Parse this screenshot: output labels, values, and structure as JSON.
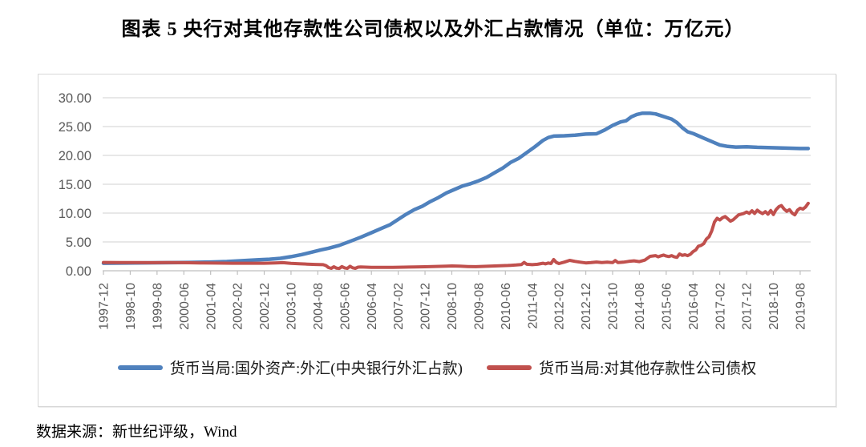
{
  "page": {
    "title": "图表 5  央行对其他存款性公司债权以及外汇占款情况（单位：万亿元）",
    "source_note": "数据来源：新世纪评级，Wind"
  },
  "chart_data": {
    "type": "line",
    "title": "央行对其他存款性公司债权以及外汇占款情况",
    "unit": "万亿元",
    "grid": true,
    "legend_position": "bottom",
    "colors": {
      "series_fx": "#4F81BD",
      "series_claims": "#C0504D",
      "gridline": "#D9D9D9",
      "axis": "#BFBFBF",
      "tick_label": "#595959"
    },
    "y_axis": {
      "min": 0,
      "max": 30,
      "step": 5,
      "tick_labels": [
        "0.00",
        "5.00",
        "10.00",
        "15.00",
        "20.00",
        "25.00",
        "30.00"
      ]
    },
    "x_axis": {
      "start": "1997-12",
      "end": "2019-11",
      "tick_interval_months": 10,
      "tick_labels": [
        "1997-12",
        "1998-10",
        "1999-08",
        "2000-06",
        "2001-04",
        "2002-02",
        "2002-12",
        "2003-10",
        "2004-08",
        "2005-06",
        "2006-04",
        "2007-02",
        "2007-12",
        "2008-10",
        "2009-08",
        "2010-06",
        "2011-04",
        "2012-02",
        "2012-12",
        "2013-10",
        "2014-08",
        "2015-06",
        "2016-04",
        "2017-02",
        "2017-12",
        "2018-10",
        "2019-08"
      ]
    },
    "legend": [
      {
        "name": "货币当局:国外资产:外汇(中央银行外汇占款)",
        "color": "#4F81BD"
      },
      {
        "name": "货币当局:对其他存款性公司债权",
        "color": "#C0504D"
      }
    ],
    "series": [
      {
        "name": "货币当局:国外资产:外汇(中央银行外汇占款)",
        "color": "#4F81BD",
        "width": 4.5,
        "x_unit": "months since 1997-12",
        "points": [
          [
            0,
            1.3
          ],
          [
            8,
            1.33
          ],
          [
            16,
            1.37
          ],
          [
            24,
            1.4
          ],
          [
            32,
            1.45
          ],
          [
            40,
            1.52
          ],
          [
            46,
            1.6
          ],
          [
            52,
            1.75
          ],
          [
            58,
            1.9
          ],
          [
            62,
            2.0
          ],
          [
            66,
            2.15
          ],
          [
            70,
            2.45
          ],
          [
            74,
            2.8
          ],
          [
            78,
            3.25
          ],
          [
            81,
            3.6
          ],
          [
            84,
            3.9
          ],
          [
            88,
            4.4
          ],
          [
            92,
            5.1
          ],
          [
            96,
            5.8
          ],
          [
            100,
            6.6
          ],
          [
            104,
            7.4
          ],
          [
            107,
            8.0
          ],
          [
            110,
            8.9
          ],
          [
            113,
            9.8
          ],
          [
            116,
            10.6
          ],
          [
            119,
            11.2
          ],
          [
            122,
            12.0
          ],
          [
            125,
            12.7
          ],
          [
            128,
            13.5
          ],
          [
            131,
            14.1
          ],
          [
            134,
            14.7
          ],
          [
            137,
            15.1
          ],
          [
            140,
            15.6
          ],
          [
            143,
            16.2
          ],
          [
            146,
            17.0
          ],
          [
            149,
            17.8
          ],
          [
            152,
            18.8
          ],
          [
            155,
            19.5
          ],
          [
            158,
            20.5
          ],
          [
            161,
            21.5
          ],
          [
            164,
            22.6
          ],
          [
            166,
            23.1
          ],
          [
            168,
            23.35
          ],
          [
            172,
            23.4
          ],
          [
            176,
            23.5
          ],
          [
            180,
            23.7
          ],
          [
            184,
            23.75
          ],
          [
            187,
            24.4
          ],
          [
            190,
            25.2
          ],
          [
            193,
            25.8
          ],
          [
            195,
            26.0
          ],
          [
            197,
            26.7
          ],
          [
            199,
            27.1
          ],
          [
            201,
            27.3
          ],
          [
            204,
            27.3
          ],
          [
            206,
            27.2
          ],
          [
            208,
            26.9
          ],
          [
            210,
            26.6
          ],
          [
            212,
            26.3
          ],
          [
            214,
            25.7
          ],
          [
            216,
            24.8
          ],
          [
            218,
            24.1
          ],
          [
            220,
            23.8
          ],
          [
            222,
            23.4
          ],
          [
            224,
            23.0
          ],
          [
            227,
            22.4
          ],
          [
            230,
            21.8
          ],
          [
            233,
            21.55
          ],
          [
            236,
            21.45
          ],
          [
            240,
            21.5
          ],
          [
            244,
            21.4
          ],
          [
            248,
            21.35
          ],
          [
            252,
            21.3
          ],
          [
            256,
            21.25
          ],
          [
            260,
            21.2
          ],
          [
            263,
            21.2
          ]
        ]
      },
      {
        "name": "货币当局:对其他存款性公司债权",
        "color": "#C0504D",
        "width": 4,
        "x_unit": "months since 1997-12",
        "points": [
          [
            0,
            1.44
          ],
          [
            6,
            1.42
          ],
          [
            12,
            1.43
          ],
          [
            18,
            1.4
          ],
          [
            24,
            1.41
          ],
          [
            30,
            1.4
          ],
          [
            36,
            1.36
          ],
          [
            42,
            1.34
          ],
          [
            48,
            1.31
          ],
          [
            54,
            1.3
          ],
          [
            60,
            1.3
          ],
          [
            64,
            1.36
          ],
          [
            67,
            1.4
          ],
          [
            70,
            1.28
          ],
          [
            73,
            1.22
          ],
          [
            76,
            1.15
          ],
          [
            79,
            1.1
          ],
          [
            82,
            1.05
          ],
          [
            83,
            0.9
          ],
          [
            84,
            0.55
          ],
          [
            85,
            0.42
          ],
          [
            86,
            0.7
          ],
          [
            87,
            0.44
          ],
          [
            88,
            0.4
          ],
          [
            89,
            0.72
          ],
          [
            90,
            0.5
          ],
          [
            91,
            0.4
          ],
          [
            92,
            0.78
          ],
          [
            93,
            0.52
          ],
          [
            94,
            0.42
          ],
          [
            95,
            0.62
          ],
          [
            96,
            0.66
          ],
          [
            98,
            0.62
          ],
          [
            100,
            0.6
          ],
          [
            104,
            0.6
          ],
          [
            108,
            0.58
          ],
          [
            112,
            0.63
          ],
          [
            116,
            0.65
          ],
          [
            120,
            0.7
          ],
          [
            124,
            0.75
          ],
          [
            128,
            0.8
          ],
          [
            130,
            0.83
          ],
          [
            133,
            0.79
          ],
          [
            136,
            0.74
          ],
          [
            139,
            0.71
          ],
          [
            142,
            0.76
          ],
          [
            145,
            0.82
          ],
          [
            148,
            0.88
          ],
          [
            151,
            0.92
          ],
          [
            154,
            1.0
          ],
          [
            156,
            1.08
          ],
          [
            157,
            1.45
          ],
          [
            158,
            1.12
          ],
          [
            160,
            1.06
          ],
          [
            162,
            1.12
          ],
          [
            164,
            1.3
          ],
          [
            165,
            1.2
          ],
          [
            166,
            1.35
          ],
          [
            167,
            1.25
          ],
          [
            168,
            1.95
          ],
          [
            169,
            1.45
          ],
          [
            170,
            1.25
          ],
          [
            172,
            1.5
          ],
          [
            174,
            1.8
          ],
          [
            176,
            1.62
          ],
          [
            178,
            1.48
          ],
          [
            180,
            1.36
          ],
          [
            182,
            1.42
          ],
          [
            184,
            1.52
          ],
          [
            186,
            1.42
          ],
          [
            188,
            1.48
          ],
          [
            190,
            1.42
          ],
          [
            191,
            1.78
          ],
          [
            192,
            1.42
          ],
          [
            194,
            1.48
          ],
          [
            196,
            1.62
          ],
          [
            198,
            1.72
          ],
          [
            200,
            1.58
          ],
          [
            202,
            1.85
          ],
          [
            204,
            2.5
          ],
          [
            206,
            2.62
          ],
          [
            207,
            2.42
          ],
          [
            208,
            2.58
          ],
          [
            209,
            2.72
          ],
          [
            210,
            2.56
          ],
          [
            211,
            2.46
          ],
          [
            212,
            2.62
          ],
          [
            213,
            2.42
          ],
          [
            214,
            2.32
          ],
          [
            215,
            2.92
          ],
          [
            216,
            2.66
          ],
          [
            217,
            2.78
          ],
          [
            218,
            2.62
          ],
          [
            219,
            2.85
          ],
          [
            220,
            3.3
          ],
          [
            221,
            3.6
          ],
          [
            222,
            4.25
          ],
          [
            223,
            4.4
          ],
          [
            224,
            4.7
          ],
          [
            225,
            5.5
          ],
          [
            226,
            5.9
          ],
          [
            227,
            6.9
          ],
          [
            228,
            8.45
          ],
          [
            229,
            9.1
          ],
          [
            230,
            8.8
          ],
          [
            231,
            9.2
          ],
          [
            232,
            9.4
          ],
          [
            233,
            9.0
          ],
          [
            234,
            8.6
          ],
          [
            235,
            8.85
          ],
          [
            237,
            9.7
          ],
          [
            239,
            9.95
          ],
          [
            240,
            10.2
          ],
          [
            241,
            9.95
          ],
          [
            242,
            10.4
          ],
          [
            243,
            9.95
          ],
          [
            244,
            10.5
          ],
          [
            245,
            10.15
          ],
          [
            246,
            9.9
          ],
          [
            247,
            10.25
          ],
          [
            248,
            9.8
          ],
          [
            249,
            10.45
          ],
          [
            250,
            9.75
          ],
          [
            251,
            10.6
          ],
          [
            252,
            11.1
          ],
          [
            253,
            11.3
          ],
          [
            254,
            10.7
          ],
          [
            255,
            10.3
          ],
          [
            256,
            10.6
          ],
          [
            257,
            10.0
          ],
          [
            258,
            9.7
          ],
          [
            259,
            10.5
          ],
          [
            260,
            10.85
          ],
          [
            261,
            10.7
          ],
          [
            262,
            11.05
          ],
          [
            263,
            11.7
          ]
        ]
      }
    ]
  }
}
